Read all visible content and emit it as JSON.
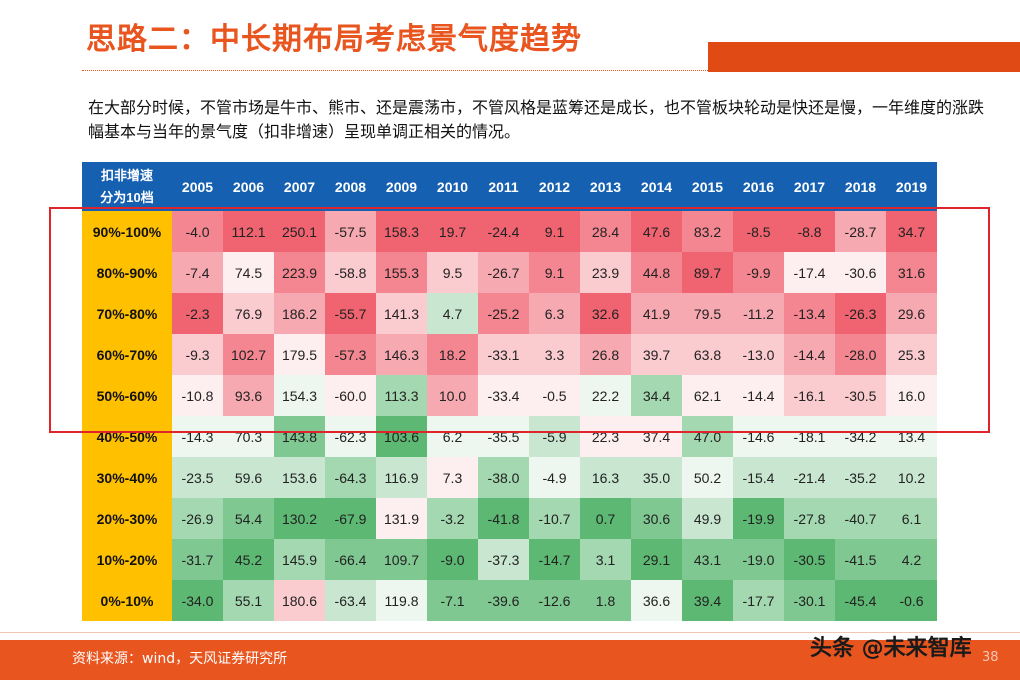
{
  "title": "思路二：中长期布局考虑景气度趋势",
  "intro": "在大部分时候，不管市场是牛市、熊市、还是震荡市，不管风格是蓝筹还是成长，也不管板块轮动是快还是慢，一年维度的涨跌幅基本与当年的景气度（扣非增速）呈现单调正相关的情况。",
  "table": {
    "corner_line1": "扣非增速",
    "corner_line2": "分为10档",
    "years": [
      "2005",
      "2006",
      "2007",
      "2008",
      "2009",
      "2010",
      "2011",
      "2012",
      "2013",
      "2014",
      "2015",
      "2016",
      "2017",
      "2018",
      "2019"
    ],
    "rows": [
      {
        "label": "90%-100%",
        "values": [
          "-4.0",
          "112.1",
          "250.1",
          "-57.5",
          "158.3",
          "19.7",
          "-24.4",
          "9.1",
          "28.4",
          "47.6",
          "83.2",
          "-8.5",
          "-8.8",
          "-28.7",
          "34.7"
        ]
      },
      {
        "label": "80%-90%",
        "values": [
          "-7.4",
          "74.5",
          "223.9",
          "-58.8",
          "155.3",
          "9.5",
          "-26.7",
          "9.1",
          "23.9",
          "44.8",
          "89.7",
          "-9.9",
          "-17.4",
          "-30.6",
          "31.6"
        ]
      },
      {
        "label": "70%-80%",
        "values": [
          "-2.3",
          "76.9",
          "186.2",
          "-55.7",
          "141.3",
          "4.7",
          "-25.2",
          "6.3",
          "32.6",
          "41.9",
          "79.5",
          "-11.2",
          "-13.4",
          "-26.3",
          "29.6"
        ]
      },
      {
        "label": "60%-70%",
        "values": [
          "-9.3",
          "102.7",
          "179.5",
          "-57.3",
          "146.3",
          "18.2",
          "-33.1",
          "3.3",
          "26.8",
          "39.7",
          "63.8",
          "-13.0",
          "-14.4",
          "-28.0",
          "25.3"
        ]
      },
      {
        "label": "50%-60%",
        "values": [
          "-10.8",
          "93.6",
          "154.3",
          "-60.0",
          "113.3",
          "10.0",
          "-33.4",
          "-0.5",
          "22.2",
          "34.4",
          "62.1",
          "-14.4",
          "-16.1",
          "-30.5",
          "16.0"
        ]
      },
      {
        "label": "40%-50%",
        "values": [
          "-14.3",
          "70.3",
          "143.8",
          "-62.3",
          "103.6",
          "6.2",
          "-35.5",
          "-5.9",
          "22.3",
          "37.4",
          "47.0",
          "-14.6",
          "-18.1",
          "-34.2",
          "13.4"
        ]
      },
      {
        "label": "30%-40%",
        "values": [
          "-23.5",
          "59.6",
          "153.6",
          "-64.3",
          "116.9",
          "7.3",
          "-38.0",
          "-4.9",
          "16.3",
          "35.0",
          "50.2",
          "-15.4",
          "-21.4",
          "-35.2",
          "10.2"
        ]
      },
      {
        "label": "20%-30%",
        "values": [
          "-26.9",
          "54.4",
          "130.2",
          "-67.9",
          "131.9",
          "-3.2",
          "-41.8",
          "-10.7",
          "0.7",
          "30.6",
          "49.9",
          "-19.9",
          "-27.8",
          "-40.7",
          "6.1"
        ]
      },
      {
        "label": "10%-20%",
        "values": [
          "-31.7",
          "45.2",
          "145.9",
          "-66.4",
          "109.7",
          "-9.0",
          "-37.3",
          "-14.7",
          "3.1",
          "29.1",
          "43.1",
          "-19.0",
          "-30.5",
          "-41.5",
          "4.2"
        ]
      },
      {
        "label": "0%-10%",
        "values": [
          "-34.0",
          "55.1",
          "180.6",
          "-63.4",
          "119.8",
          "-7.1",
          "-39.6",
          "-12.6",
          "1.8",
          "36.6",
          "39.4",
          "-17.7",
          "-30.1",
          "-45.4",
          "-0.6"
        ]
      }
    ]
  },
  "footer": {
    "source": "资料来源：wind，天风证券研究所",
    "page_number": "38",
    "watermark": "头条 @未来智库"
  },
  "colors": {
    "title": "#e8551f",
    "header_bg": "#1560b0",
    "row_label_bg": "#ffc000",
    "heat_high": "#ef6470",
    "heat_mid": "#ffffff",
    "heat_low": "#5cb872",
    "highlight_border": "#e0242c",
    "footer_bg": "#e8551f"
  }
}
